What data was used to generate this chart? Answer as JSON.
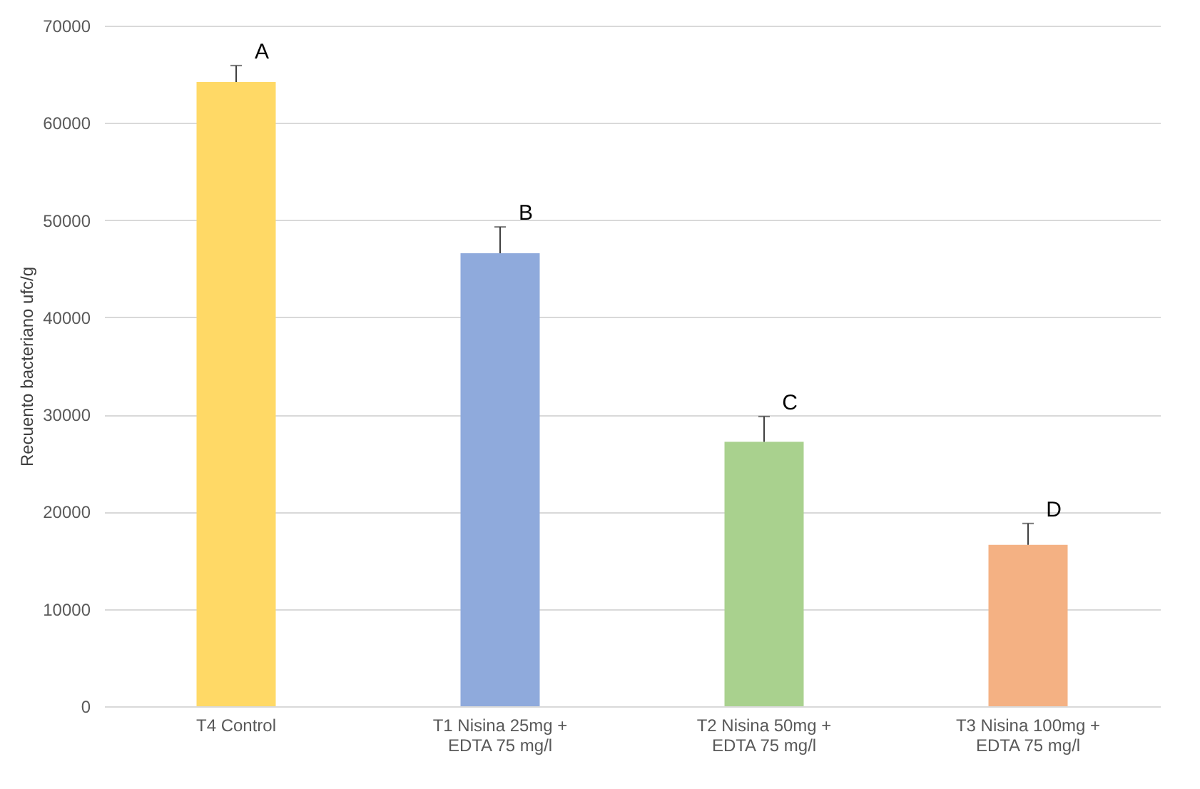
{
  "chart_data": {
    "type": "bar",
    "ylabel": "Recuento bacteriano ufc/g",
    "categories": [
      "T4 Control",
      "T1 Nisina 25mg + EDTA 75 mg/l",
      "T2 Nisina 50mg + EDTA 75 mg/l",
      "T3 Nisina 100mg + EDTA 75 mg/l"
    ],
    "values": [
      64200,
      46600,
      27200,
      16600
    ],
    "errors": [
      1700,
      2700,
      2600,
      2200
    ],
    "colors": [
      "#ffd966",
      "#8faadc",
      "#a9d18e",
      "#f4b183"
    ],
    "ylim": [
      0,
      70000
    ],
    "yticks": [
      0,
      10000,
      20000,
      30000,
      40000,
      50000,
      60000,
      70000
    ],
    "grid": "y",
    "annotations": [
      {
        "text": "A",
        "x": "T4 Control",
        "y": 65900
      },
      {
        "text": "B",
        "x": "T1 Nisina 25mg + EDTA 75 mg/l",
        "y": 49300
      },
      {
        "text": "C",
        "x": "T2 Nisina 50mg + EDTA 75 mg/l",
        "y": 29800
      },
      {
        "text": "D",
        "x": "T3 Nisina 100mg + EDTA 75 mg/l",
        "y": 18800
      }
    ]
  }
}
